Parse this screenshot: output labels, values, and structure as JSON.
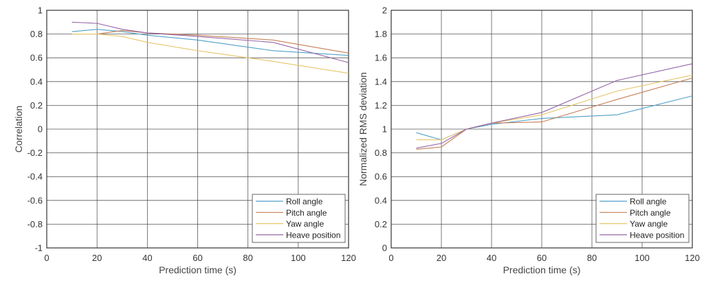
{
  "chart_data": [
    {
      "type": "line",
      "title": "",
      "xlabel": "Prediction time  (s)",
      "ylabel": "Correlation",
      "xlim": [
        0,
        120
      ],
      "ylim": [
        -1,
        1
      ],
      "xticks": [
        "0",
        "20",
        "40",
        "60",
        "80",
        "100",
        "120"
      ],
      "yticks": [
        "-1",
        "-0.8",
        "-0.6",
        "-0.4",
        "-0.2",
        "0",
        "0.2",
        "0.4",
        "0.6",
        "0.8",
        "1"
      ],
      "grid": true,
      "legend_position": "bottom-right",
      "x": [
        10,
        20,
        30,
        40,
        60,
        90,
        120
      ],
      "series": [
        {
          "name": "Roll angle",
          "color": "#4f9fc7",
          "values": [
            0.82,
            0.84,
            0.82,
            0.79,
            0.75,
            0.66,
            0.62
          ]
        },
        {
          "name": "Pitch angle",
          "color": "#c47e55",
          "values": [
            0.8,
            0.8,
            0.83,
            0.81,
            0.79,
            0.75,
            0.64
          ]
        },
        {
          "name": "Yaw angle",
          "color": "#e6c56a",
          "values": [
            0.8,
            0.8,
            0.78,
            0.73,
            0.66,
            0.57,
            0.47
          ]
        },
        {
          "name": "Heave position",
          "color": "#9564a6",
          "values": [
            0.9,
            0.89,
            0.84,
            0.81,
            0.78,
            0.73,
            0.56
          ]
        }
      ]
    },
    {
      "type": "line",
      "title": "",
      "xlabel": "Prediction time  (s)",
      "ylabel": "Normalized RMS deviation",
      "xlim": [
        0,
        120
      ],
      "ylim": [
        0,
        2
      ],
      "xticks": [
        "0",
        "20",
        "40",
        "60",
        "80",
        "100",
        "120"
      ],
      "yticks": [
        "0",
        "0.2",
        "0.4",
        "0.6",
        "0.8",
        "1",
        "1.2",
        "1.4",
        "1.6",
        "1.8",
        "2"
      ],
      "grid": true,
      "legend_position": "bottom-right",
      "x": [
        10,
        20,
        30,
        40,
        60,
        90,
        120
      ],
      "series": [
        {
          "name": "Roll angle",
          "color": "#4f9fc7",
          "values": [
            0.97,
            0.91,
            1.0,
            1.04,
            1.09,
            1.12,
            1.28
          ]
        },
        {
          "name": "Pitch angle",
          "color": "#c47e55",
          "values": [
            0.83,
            0.85,
            1.0,
            1.05,
            1.06,
            1.25,
            1.43
          ]
        },
        {
          "name": "Yaw angle",
          "color": "#e6c56a",
          "values": [
            0.91,
            0.91,
            1.0,
            1.05,
            1.12,
            1.32,
            1.455
          ]
        },
        {
          "name": "Heave position",
          "color": "#9564a6",
          "values": [
            0.84,
            0.88,
            1.0,
            1.05,
            1.14,
            1.41,
            1.55
          ]
        }
      ]
    }
  ]
}
